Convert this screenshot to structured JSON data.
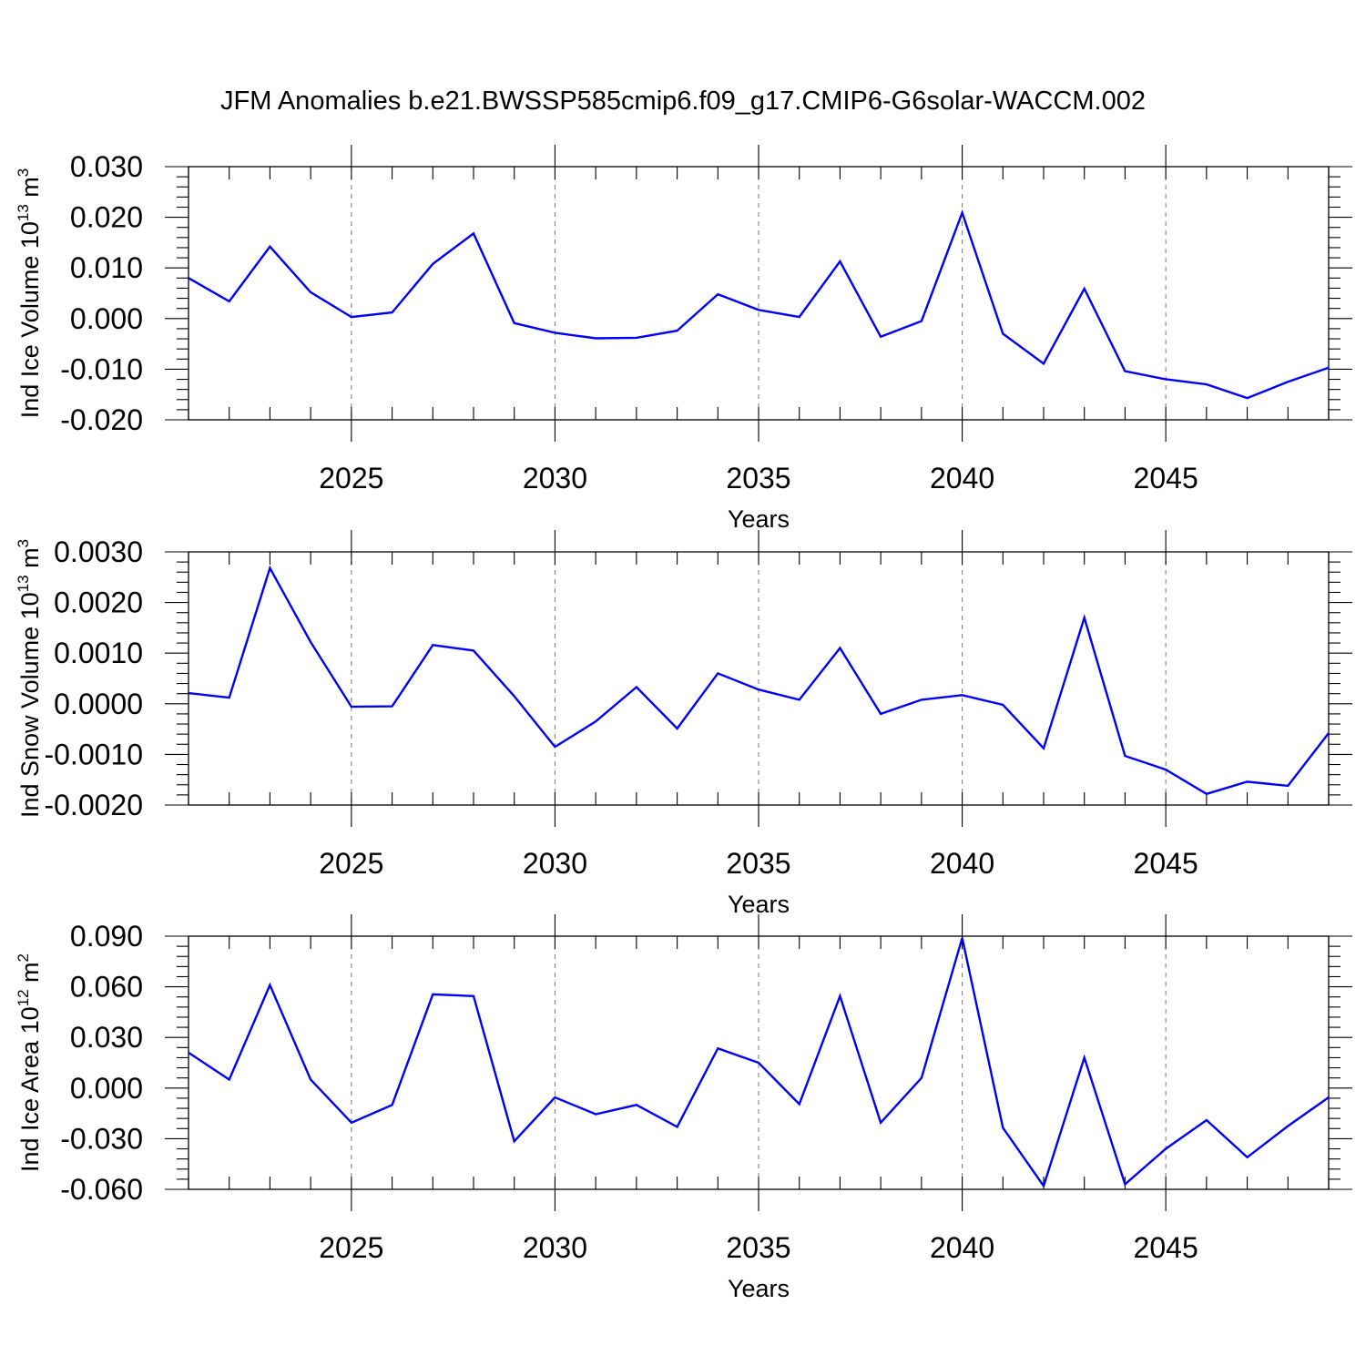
{
  "title": "JFM Anomalies b.e21.BWSSP585cmip6.f09_g17.CMIP6-G6solar-WACCM.002",
  "colors": {
    "line": "#0000ff",
    "grid": "#7a7a7a"
  },
  "chart_data": [
    {
      "type": "line",
      "ylabel": "Ind Ice Volume 10",
      "ylabel_exp": "13",
      "ylabel_unit": " m",
      "ylabel_unit_exp": "3",
      "xlabel": "Years",
      "xlim": [
        2021,
        2049
      ],
      "ylim": [
        -0.02,
        0.03
      ],
      "yticks": [
        -0.02,
        -0.01,
        0.0,
        0.01,
        0.02,
        0.03
      ],
      "ytick_labels": [
        "-0.020",
        "-0.010",
        "0.000",
        "0.010",
        "0.020",
        "0.030"
      ],
      "xticks": [
        2025,
        2030,
        2035,
        2040,
        2045
      ],
      "xtick_labels": [
        "2025",
        "2030",
        "2035",
        "2040",
        "2045"
      ],
      "grid": "vertical-dashed",
      "x": [
        2021,
        2022,
        2023,
        2024,
        2025,
        2026,
        2027,
        2028,
        2029,
        2030,
        2031,
        2032,
        2033,
        2034,
        2035,
        2036,
        2037,
        2038,
        2039,
        2040,
        2041,
        2042,
        2043,
        2044,
        2045,
        2046,
        2047,
        2048,
        2049
      ],
      "values": [
        0.008,
        0.0034,
        0.0142,
        0.0052,
        0.0003,
        0.0012,
        0.0108,
        0.0168,
        -0.0009,
        -0.0028,
        -0.0039,
        -0.0038,
        -0.0024,
        0.0048,
        0.0017,
        0.0003,
        0.0113,
        -0.0036,
        -0.0005,
        0.0209,
        -0.003,
        -0.0089,
        0.0059,
        -0.0104,
        -0.012,
        -0.013,
        -0.0157,
        -0.0125,
        -0.0097
      ]
    },
    {
      "type": "line",
      "ylabel": "Ind Snow Volume 10",
      "ylabel_exp": "13",
      "ylabel_unit": " m",
      "ylabel_unit_exp": "3",
      "xlabel": "Years",
      "xlim": [
        2021,
        2049
      ],
      "ylim": [
        -0.002,
        0.003
      ],
      "yticks": [
        -0.002,
        -0.001,
        0.0,
        0.001,
        0.002,
        0.003
      ],
      "ytick_labels": [
        "-0.0020",
        "-0.0010",
        "0.0000",
        "0.0010",
        "0.0020",
        "0.0030"
      ],
      "xticks": [
        2025,
        2030,
        2035,
        2040,
        2045
      ],
      "xtick_labels": [
        "2025",
        "2030",
        "2035",
        "2040",
        "2045"
      ],
      "grid": "vertical-dashed",
      "x": [
        2021,
        2022,
        2023,
        2024,
        2025,
        2026,
        2027,
        2028,
        2029,
        2030,
        2031,
        2032,
        2033,
        2034,
        2035,
        2036,
        2037,
        2038,
        2039,
        2040,
        2041,
        2042,
        2043,
        2044,
        2045,
        2046,
        2047,
        2048,
        2049
      ],
      "values": [
        0.00021,
        0.00012,
        0.00268,
        0.00122,
        -6e-05,
        -5e-05,
        0.00116,
        0.00105,
        0.00015,
        -0.00085,
        -0.00035,
        0.00033,
        -0.00049,
        0.0006,
        0.00028,
        8e-05,
        0.0011,
        -0.0002,
        8e-05,
        0.00017,
        -2e-05,
        -0.00088,
        0.0017,
        -0.00103,
        -0.0013,
        -0.00178,
        -0.00154,
        -0.00162,
        -0.00058
      ]
    },
    {
      "type": "line",
      "ylabel": "Ind Ice Area 10",
      "ylabel_exp": "12",
      "ylabel_unit": " m",
      "ylabel_unit_exp": "2",
      "xlabel": "Years",
      "xlim": [
        2021,
        2049
      ],
      "ylim": [
        -0.06,
        0.09
      ],
      "yticks": [
        -0.06,
        -0.03,
        0.0,
        0.03,
        0.06,
        0.09
      ],
      "ytick_labels": [
        "-0.060",
        "-0.030",
        "0.000",
        "0.030",
        "0.060",
        "0.090"
      ],
      "xticks": [
        2025,
        2030,
        2035,
        2040,
        2045
      ],
      "xtick_labels": [
        "2025",
        "2030",
        "2035",
        "2040",
        "2045"
      ],
      "grid": "vertical-dashed",
      "x": [
        2021,
        2022,
        2023,
        2024,
        2025,
        2026,
        2027,
        2028,
        2029,
        2030,
        2031,
        2032,
        2033,
        2034,
        2035,
        2036,
        2037,
        2038,
        2039,
        2040,
        2041,
        2042,
        2043,
        2044,
        2045,
        2046,
        2047,
        2048,
        2049
      ],
      "values": [
        0.021,
        0.005,
        0.061,
        0.005,
        -0.0205,
        -0.01,
        0.0555,
        0.0545,
        -0.0315,
        -0.0055,
        -0.0155,
        -0.01,
        -0.023,
        0.0235,
        0.015,
        -0.0095,
        0.0545,
        -0.0205,
        0.006,
        0.089,
        -0.0235,
        -0.058,
        0.018,
        -0.057,
        -0.036,
        -0.019,
        -0.041,
        -0.0225,
        -0.0055
      ]
    }
  ]
}
